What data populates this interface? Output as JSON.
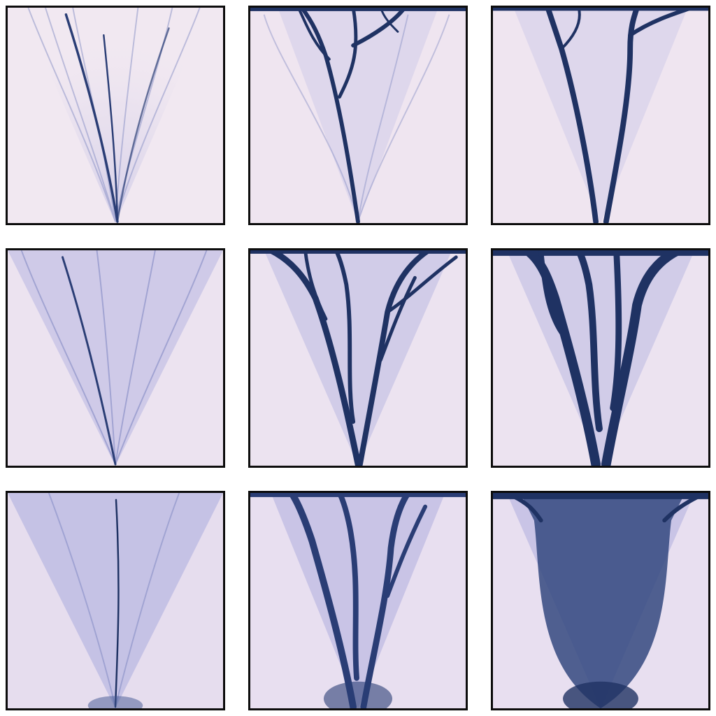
{
  "figure": {
    "rows": 3,
    "cols": 3,
    "colors": {
      "background_light": "#f3ebf3",
      "background_mid": "#c9c6e6",
      "channel_dark": "#1f3263",
      "channel_mid": "#34497f",
      "frame": "#0d0d0d"
    },
    "panels": [
      {
        "id": "r1c1",
        "pattern": "fine-streaks",
        "haze": 0.15,
        "channel_weight": 1
      },
      {
        "id": "r1c2",
        "pattern": "branching-channels",
        "haze": 0.18,
        "channel_weight": 2
      },
      {
        "id": "r1c3",
        "pattern": "two-main-channels",
        "haze": 0.18,
        "channel_weight": 2
      },
      {
        "id": "r2c1",
        "pattern": "faint-streaks",
        "haze": 0.32,
        "channel_weight": 1
      },
      {
        "id": "r2c2",
        "pattern": "branching-channels",
        "haze": 0.3,
        "channel_weight": 3
      },
      {
        "id": "r2c3",
        "pattern": "thick-branching",
        "haze": 0.3,
        "channel_weight": 4
      },
      {
        "id": "r3c1",
        "pattern": "single-thin-line",
        "haze": 0.45,
        "channel_weight": 1
      },
      {
        "id": "r3c2",
        "pattern": "dense-branching",
        "haze": 0.42,
        "channel_weight": 3
      },
      {
        "id": "r3c3",
        "pattern": "merged-fan",
        "haze": 0.45,
        "channel_weight": 5
      }
    ]
  }
}
